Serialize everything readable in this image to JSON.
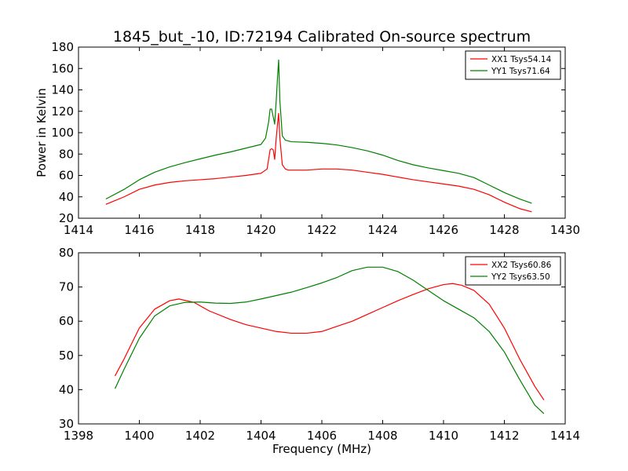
{
  "title": "1845_but_-10, ID:72194 Calibrated On-source spectrum",
  "colors": {
    "red": "#ff0000",
    "green": "#008000"
  },
  "chart_data": [
    {
      "type": "line",
      "ylabel": "Power in Kelvin",
      "xlabel": "",
      "xlim": [
        1414,
        1430
      ],
      "ylim": [
        20,
        180
      ],
      "xticks": [
        1414,
        1416,
        1418,
        1420,
        1422,
        1424,
        1426,
        1428,
        1430
      ],
      "yticks": [
        20,
        40,
        60,
        80,
        100,
        120,
        140,
        160,
        180
      ],
      "legend": "top-right",
      "series": [
        {
          "name": "XX1 Tsys54.14",
          "color": "#ff0000",
          "points": [
            [
              1414.9,
              33
            ],
            [
              1415.5,
              40
            ],
            [
              1416,
              47
            ],
            [
              1416.5,
              51
            ],
            [
              1417,
              53.5
            ],
            [
              1417.5,
              55
            ],
            [
              1418,
              56
            ],
            [
              1418.5,
              57
            ],
            [
              1419,
              58.5
            ],
            [
              1419.5,
              60
            ],
            [
              1420,
              62
            ],
            [
              1420.2,
              66
            ],
            [
              1420.3,
              84
            ],
            [
              1420.35,
              85
            ],
            [
              1420.4,
              84
            ],
            [
              1420.45,
              75
            ],
            [
              1420.5,
              95
            ],
            [
              1420.55,
              110
            ],
            [
              1420.58,
              118
            ],
            [
              1420.62,
              95
            ],
            [
              1420.7,
              70
            ],
            [
              1420.8,
              66
            ],
            [
              1420.9,
              65
            ],
            [
              1421.5,
              65
            ],
            [
              1422,
              66
            ],
            [
              1422.5,
              66
            ],
            [
              1423,
              65
            ],
            [
              1423.5,
              63
            ],
            [
              1424,
              61
            ],
            [
              1424.5,
              58.5
            ],
            [
              1425,
              56
            ],
            [
              1425.5,
              54
            ],
            [
              1426,
              52
            ],
            [
              1426.5,
              50
            ],
            [
              1427,
              47
            ],
            [
              1427.5,
              42
            ],
            [
              1428,
              35
            ],
            [
              1428.5,
              29
            ],
            [
              1428.9,
              26
            ]
          ]
        },
        {
          "name": "YY1 Tsys71.64",
          "color": "#008000",
          "points": [
            [
              1414.9,
              38
            ],
            [
              1415.5,
              47
            ],
            [
              1416,
              56
            ],
            [
              1416.5,
              63
            ],
            [
              1417,
              68
            ],
            [
              1417.5,
              72
            ],
            [
              1418,
              75.5
            ],
            [
              1418.5,
              79
            ],
            [
              1419,
              82
            ],
            [
              1419.5,
              85.5
            ],
            [
              1420,
              89
            ],
            [
              1420.15,
              95
            ],
            [
              1420.25,
              110
            ],
            [
              1420.3,
              122
            ],
            [
              1420.35,
              122
            ],
            [
              1420.4,
              115
            ],
            [
              1420.45,
              108
            ],
            [
              1420.5,
              130
            ],
            [
              1420.55,
              155
            ],
            [
              1420.58,
              168
            ],
            [
              1420.62,
              130
            ],
            [
              1420.7,
              97
            ],
            [
              1420.8,
              93
            ],
            [
              1421,
              91.5
            ],
            [
              1421.5,
              91
            ],
            [
              1422,
              90
            ],
            [
              1422.5,
              88.5
            ],
            [
              1423,
              86
            ],
            [
              1423.5,
              83
            ],
            [
              1424,
              79
            ],
            [
              1424.5,
              74
            ],
            [
              1425,
              70
            ],
            [
              1425.5,
              67
            ],
            [
              1426,
              64.5
            ],
            [
              1426.5,
              62
            ],
            [
              1427,
              58
            ],
            [
              1427.5,
              51
            ],
            [
              1428,
              44
            ],
            [
              1428.5,
              38
            ],
            [
              1428.9,
              34
            ]
          ]
        }
      ]
    },
    {
      "type": "line",
      "ylabel": "",
      "xlabel": "Frequency (MHz)",
      "xlim": [
        1398,
        1414
      ],
      "ylim": [
        30,
        80
      ],
      "xticks": [
        1398,
        1400,
        1402,
        1404,
        1406,
        1408,
        1410,
        1412,
        1414
      ],
      "yticks": [
        30,
        40,
        50,
        60,
        70,
        80
      ],
      "legend": "top-right",
      "series": [
        {
          "name": "XX2 Tsys60.86",
          "color": "#ff0000",
          "points": [
            [
              1399.2,
              44
            ],
            [
              1399.5,
              49
            ],
            [
              1400,
              58
            ],
            [
              1400.5,
              63.5
            ],
            [
              1401,
              66
            ],
            [
              1401.3,
              66.5
            ],
            [
              1401.8,
              65.5
            ],
            [
              1402.3,
              63
            ],
            [
              1403,
              60.5
            ],
            [
              1403.5,
              59
            ],
            [
              1404,
              58
            ],
            [
              1404.5,
              57
            ],
            [
              1405,
              56.5
            ],
            [
              1405.5,
              56.5
            ],
            [
              1406,
              57
            ],
            [
              1406.5,
              58.5
            ],
            [
              1407,
              60
            ],
            [
              1407.5,
              62
            ],
            [
              1408,
              64
            ],
            [
              1408.5,
              66
            ],
            [
              1409,
              67.8
            ],
            [
              1409.5,
              69.5
            ],
            [
              1410,
              70.7
            ],
            [
              1410.3,
              71
            ],
            [
              1410.6,
              70.5
            ],
            [
              1411,
              69
            ],
            [
              1411.5,
              65
            ],
            [
              1412,
              58
            ],
            [
              1412.5,
              49
            ],
            [
              1413,
              41
            ],
            [
              1413.3,
              37
            ]
          ]
        },
        {
          "name": "YY2 Tsys63.50",
          "color": "#008000",
          "points": [
            [
              1399.2,
              40.3
            ],
            [
              1399.5,
              46
            ],
            [
              1400,
              55
            ],
            [
              1400.5,
              61.5
            ],
            [
              1401,
              64.5
            ],
            [
              1401.5,
              65.5
            ],
            [
              1402,
              65.6
            ],
            [
              1402.5,
              65.3
            ],
            [
              1403,
              65.2
            ],
            [
              1403.5,
              65.6
            ],
            [
              1404,
              66.5
            ],
            [
              1404.5,
              67.5
            ],
            [
              1405,
              68.5
            ],
            [
              1405.5,
              69.8
            ],
            [
              1406,
              71.2
            ],
            [
              1406.5,
              72.8
            ],
            [
              1407,
              74.8
            ],
            [
              1407.5,
              75.8
            ],
            [
              1408,
              75.8
            ],
            [
              1408.5,
              74.5
            ],
            [
              1409,
              72
            ],
            [
              1409.5,
              69
            ],
            [
              1410,
              66
            ],
            [
              1410.5,
              63.5
            ],
            [
              1411,
              61
            ],
            [
              1411.5,
              57
            ],
            [
              1412,
              51
            ],
            [
              1412.5,
              43
            ],
            [
              1413,
              35.5
            ],
            [
              1413.3,
              33
            ]
          ]
        }
      ]
    }
  ]
}
